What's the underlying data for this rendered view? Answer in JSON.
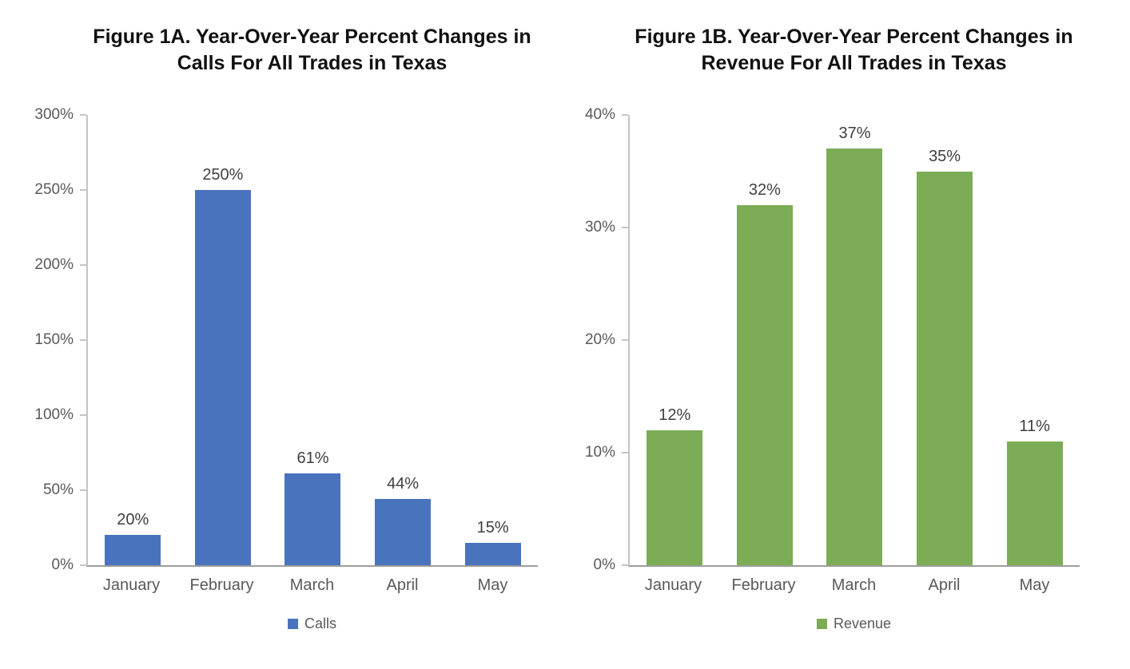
{
  "chart_data": [
    {
      "type": "bar",
      "title": "Figure 1A. Year-Over-Year Percent Changes in Calls For All Trades in Texas",
      "title_line1": "Figure 1A. Year-Over-Year Percent Changes in",
      "title_line2": "Calls For All Trades in Texas",
      "categories": [
        "January",
        "February",
        "March",
        "April",
        "May"
      ],
      "series": [
        {
          "name": "Calls",
          "values": [
            20,
            250,
            61,
            44,
            15
          ]
        }
      ],
      "value_labels": [
        "20%",
        "250%",
        "61%",
        "44%",
        "15%"
      ],
      "xlabel": "",
      "ylabel": "",
      "ylim": [
        0,
        300
      ],
      "yticks": [
        {
          "value": 300,
          "label": "300%"
        },
        {
          "value": 250,
          "label": "250%"
        },
        {
          "value": 200,
          "label": "200%"
        },
        {
          "value": 150,
          "label": "150%"
        },
        {
          "value": 100,
          "label": "100%"
        },
        {
          "value": 50,
          "label": "50%"
        },
        {
          "value": 0,
          "label": "0%"
        }
      ],
      "grid": false,
      "legend_position": "bottom",
      "bar_color": "#4A73BE",
      "legend": {
        "label": "Calls",
        "swatch_color": "#4A73BE"
      }
    },
    {
      "type": "bar",
      "title": "Figure 1B. Year-Over-Year Percent Changes in Revenue For All Trades in Texas",
      "title_line1": "Figure 1B. Year-Over-Year Percent Changes in",
      "title_line2": "Revenue For All Trades in Texas",
      "categories": [
        "January",
        "February",
        "March",
        "April",
        "May"
      ],
      "series": [
        {
          "name": "Revenue",
          "values": [
            12,
            32,
            37,
            35,
            11
          ]
        }
      ],
      "value_labels": [
        "12%",
        "32%",
        "37%",
        "35%",
        "11%"
      ],
      "xlabel": "",
      "ylabel": "",
      "ylim": [
        0,
        40
      ],
      "yticks": [
        {
          "value": 40,
          "label": "40%"
        },
        {
          "value": 30,
          "label": "30%"
        },
        {
          "value": 20,
          "label": "20%"
        },
        {
          "value": 10,
          "label": "10%"
        },
        {
          "value": 0,
          "label": "0%"
        }
      ],
      "grid": false,
      "legend_position": "bottom",
      "bar_color": "#7CAC55",
      "legend": {
        "label": "Revenue",
        "swatch_color": "#7CAC55"
      }
    }
  ],
  "colors": {
    "calls_bar": "#4A73BE",
    "revenue_bar": "#7CAC55",
    "axis_line": "#C4C4C4",
    "baseline": "#9D9D9D",
    "tick_text": "#595959",
    "value_text": "#3F3F3F",
    "title_text": "#111111"
  }
}
